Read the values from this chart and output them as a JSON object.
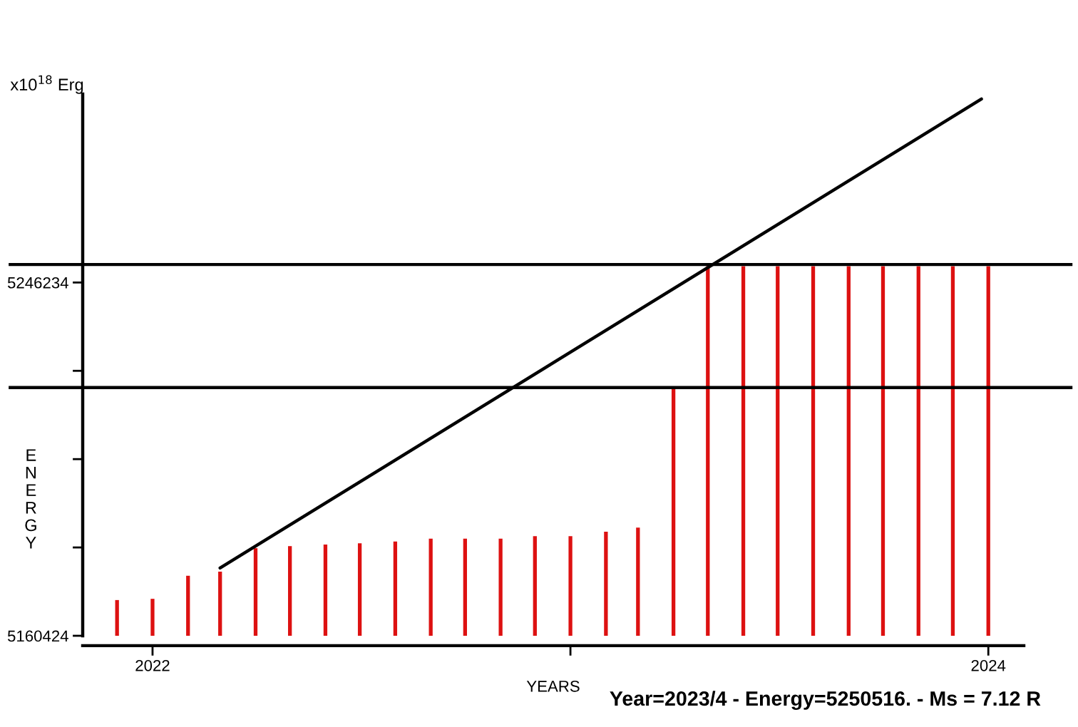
{
  "chart_data": {
    "type": "bar",
    "xlabel": "YEARS",
    "ylabel": "ENERGY",
    "annotations": [
      "x10$^{18}$ Erg",
      "Year=2023/4 - Energy=5250516. - Ms = 7.12 R"
    ],
    "x": [
      "2021-12",
      "2022-01",
      "2022-02",
      "2022-03",
      "2022-04",
      "2022-05",
      "2022-06",
      "2022-07",
      "2022-08",
      "2022-09",
      "2022-10",
      "2022-11",
      "2022-12",
      "2023-01",
      "2023-02",
      "2023-03",
      "2023-04",
      "2023-05",
      "2023-06",
      "2023-07",
      "2023-08",
      "2023-09",
      "2023-10",
      "2023-11",
      "2023-12",
      "2024-01"
    ],
    "series": [
      {
        "color": "#dd1111",
        "values": [
          5169100,
          5169400,
          5175000,
          5176000,
          5181700,
          5182200,
          5182600,
          5182900,
          5183300,
          5184000,
          5184000,
          5184000,
          5184600,
          5184600,
          5185700,
          5186700,
          5221000,
          5250200,
          5250200,
          5250200,
          5250200,
          5250200,
          5250200,
          5250200,
          5250200,
          5250200
        ]
      },
      {
        "type": "line",
        "color": "#000000",
        "x": [
          "2022-03",
          "2023-12-26"
        ],
        "values": [
          5176900,
          5290800
        ]
      }
    ],
    "xlim": [
      "2021-11",
      "2024-02"
    ],
    "xticks": [
      {
        "value": "2022",
        "label": "2022"
      },
      {
        "value": "2023",
        "label": null
      },
      {
        "value": "2024",
        "label": "2024"
      }
    ],
    "ylim": [
      5160424,
      5292000
    ],
    "yticks": [
      5160424,
      {
        "value": 5181876.5,
        "label": null
      },
      {
        "value": 5203329,
        "label": null
      },
      {
        "value": 5224781.5,
        "label": null
      },
      5246234
    ],
    "ref_lines": [
      {
        "axis": "y",
        "value": 5250600,
        "color": "#000000"
      },
      {
        "axis": "y",
        "value": 5220700,
        "color": "#000000"
      }
    ]
  }
}
